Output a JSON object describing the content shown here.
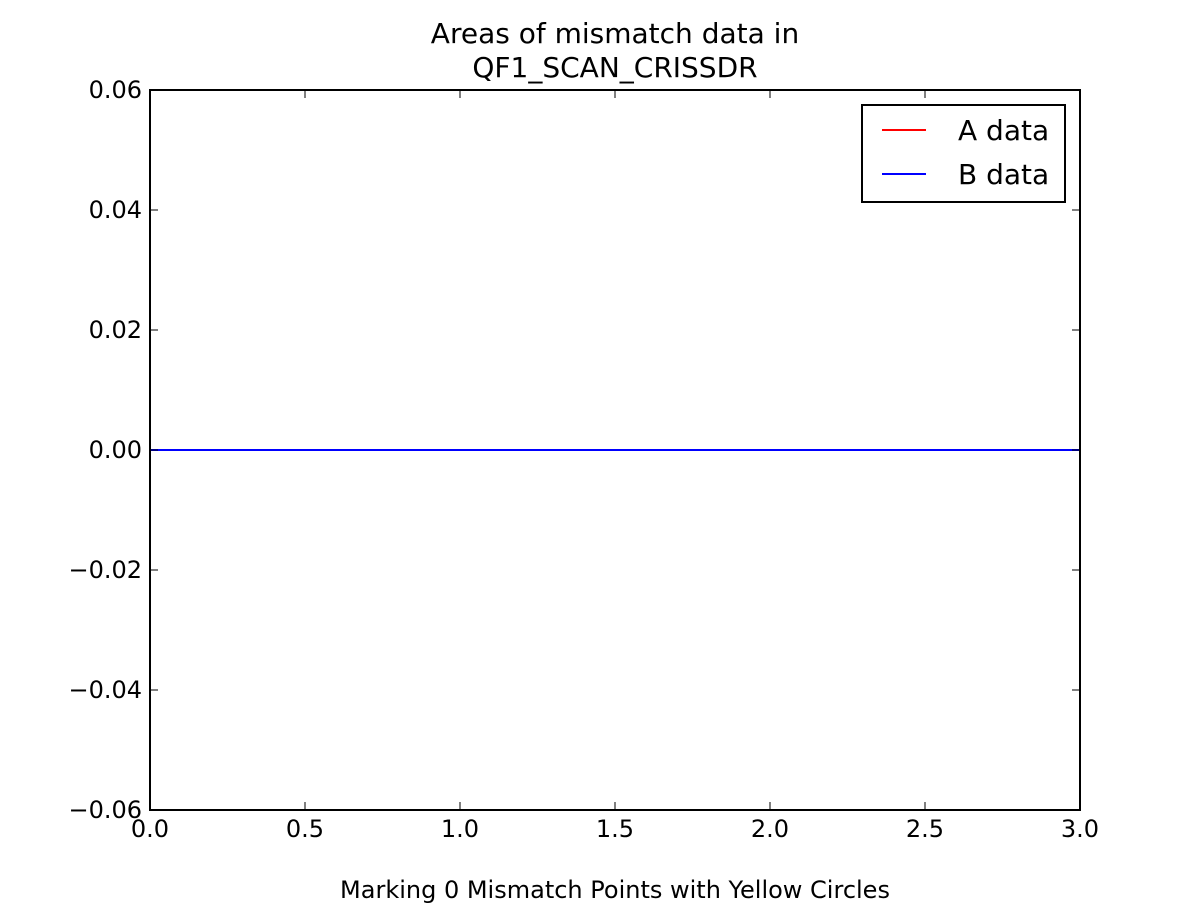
{
  "chart_data": {
    "type": "line",
    "title_lines": [
      "Areas of mismatch data in",
      "QF1_SCAN_CRISSDR"
    ],
    "xlabel": "Marking 0 Mismatch Points with Yellow Circles",
    "ylabel": "",
    "xlim": [
      0.0,
      3.0
    ],
    "ylim": [
      -0.06,
      0.06
    ],
    "x_ticks": [
      0.0,
      0.5,
      1.0,
      1.5,
      2.0,
      2.5,
      3.0
    ],
    "x_tick_labels": [
      "0.0",
      "0.5",
      "1.0",
      "1.5",
      "2.0",
      "2.5",
      "3.0"
    ],
    "y_ticks": [
      0.06,
      0.04,
      0.02,
      0.0,
      -0.02,
      -0.04,
      -0.06
    ],
    "y_tick_labels": [
      "0.06",
      "0.04",
      "0.02",
      "0.00",
      "−0.02",
      "−0.04",
      "−0.06"
    ],
    "grid": false,
    "legend_position": "top-right",
    "series": [
      {
        "name": "A data",
        "color": "#ff0000",
        "x": [
          0,
          1,
          2,
          3
        ],
        "y": [
          0,
          0,
          0,
          0
        ]
      },
      {
        "name": "B data",
        "color": "#0000ff",
        "x": [
          0,
          1,
          2,
          3
        ],
        "y": [
          0,
          0,
          0,
          0
        ]
      }
    ]
  }
}
